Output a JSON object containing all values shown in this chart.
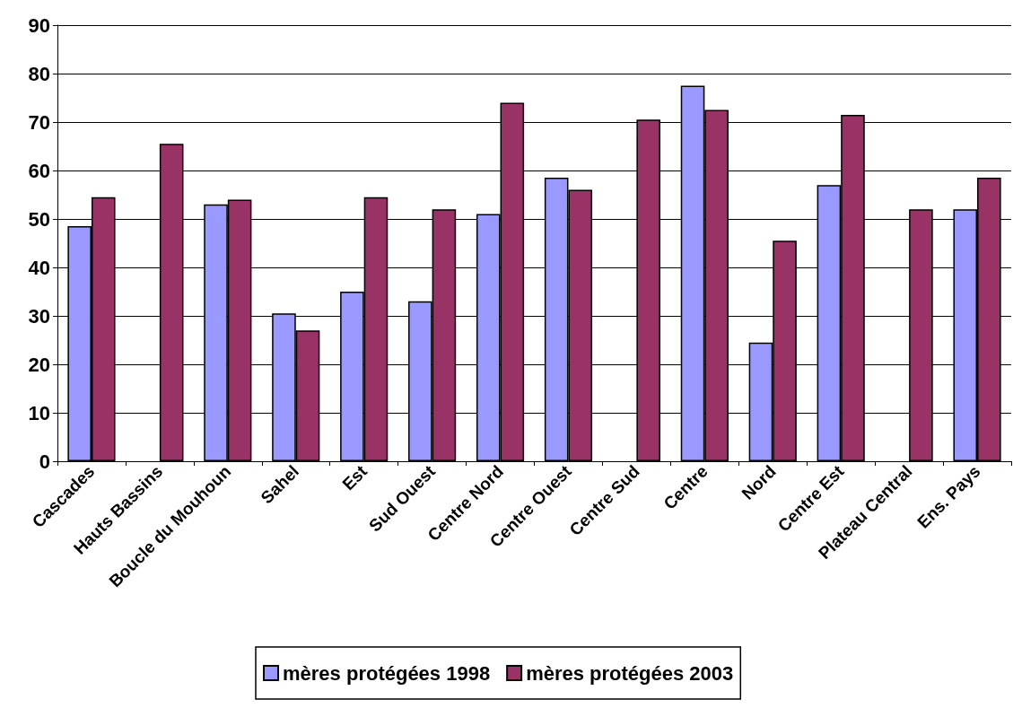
{
  "chart_data": {
    "type": "bar",
    "categories": [
      "Cascades",
      "Hauts Bassins",
      "Boucle du Mouhoun",
      "Sahel",
      "Est",
      "Sud Ouest",
      "Centre Nord",
      "Centre Ouest",
      "Centre Sud",
      "Centre",
      "Nord",
      "Centre Est",
      "Plateau Central",
      "Ens. Pays"
    ],
    "series": [
      {
        "name": "mères protégées 1998",
        "color": "#9999ff",
        "values": [
          48.5,
          null,
          53,
          30.5,
          35,
          33,
          51,
          58.5,
          null,
          77.5,
          24.5,
          57,
          null,
          52
        ]
      },
      {
        "name": "mères protégées 2003",
        "color": "#993366",
        "values": [
          54.5,
          65.5,
          54,
          27,
          54.5,
          52,
          74,
          56,
          70.5,
          72.5,
          45.5,
          71.5,
          52,
          58.5
        ]
      }
    ],
    "ylim": [
      0,
      90
    ],
    "yticks": [
      0,
      10,
      20,
      30,
      40,
      50,
      60,
      70,
      80,
      90
    ],
    "grid": "y",
    "legend": "bottom"
  }
}
